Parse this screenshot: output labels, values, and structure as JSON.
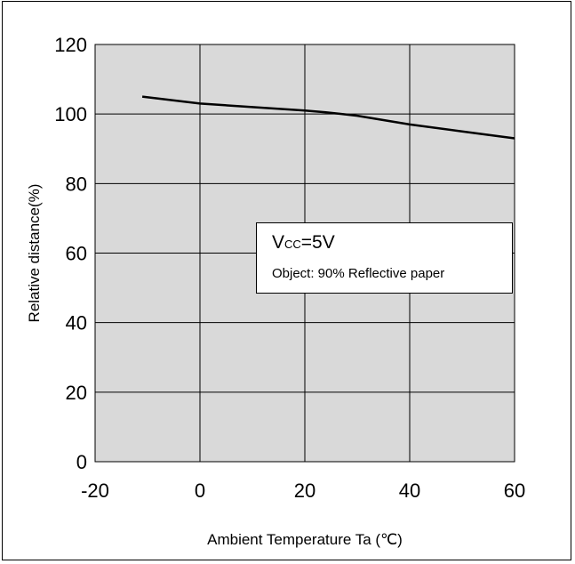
{
  "chart_data": {
    "type": "line",
    "xlabel": "Ambient Temperature Ta (℃)",
    "ylabel": "Relative distance(%)",
    "xlim": [
      -20,
      60
    ],
    "ylim": [
      0,
      120
    ],
    "x_ticks": [
      "-20",
      "0",
      "20",
      "40",
      "60"
    ],
    "y_ticks": [
      "0",
      "20",
      "40",
      "60",
      "80",
      "100",
      "120"
    ],
    "grid": true,
    "background_color": "#d9d9d9",
    "line_color": "#000000",
    "series": [
      {
        "x": [
          -11,
          0,
          10,
          20,
          24,
          30,
          40,
          50,
          60
        ],
        "y": [
          105,
          103,
          102,
          101,
          100.5,
          99.5,
          97,
          95,
          93
        ]
      }
    ],
    "annotation": {
      "vcc_prefix": "V",
      "vcc_subscript": "CC",
      "vcc_value": "=5V",
      "object": "Object: 90% Reflective paper"
    }
  }
}
